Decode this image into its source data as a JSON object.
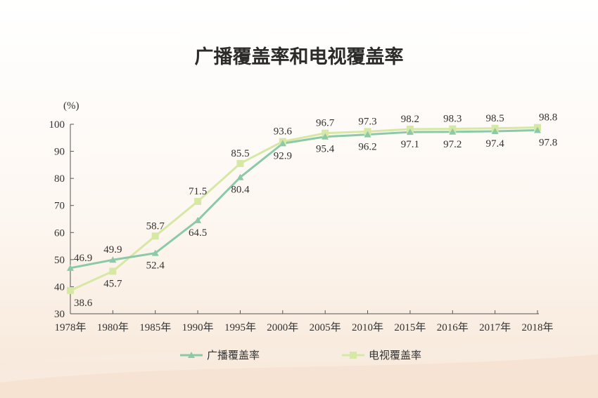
{
  "chart_data": {
    "type": "line",
    "title": "广播覆盖率和电视覆盖率",
    "ylabel": "(%)",
    "ylim": [
      30,
      100
    ],
    "yticks": [
      30,
      40,
      50,
      60,
      70,
      80,
      90,
      100
    ],
    "categories": [
      "1978年",
      "1980年",
      "1985年",
      "1990年",
      "1995年",
      "2000年",
      "2005年",
      "2010年",
      "2015年",
      "2016年",
      "2017年",
      "2018年"
    ],
    "series": [
      {
        "name": "广播覆盖率",
        "color": "#8cc9a8",
        "marker": "triangle",
        "values": [
          46.9,
          49.9,
          52.4,
          64.5,
          80.4,
          92.9,
          95.4,
          96.2,
          97.1,
          97.2,
          97.4,
          97.8
        ],
        "label_position": [
          "above",
          "above",
          "below",
          "below",
          "below",
          "below",
          "below",
          "below",
          "below",
          "below",
          "below",
          "below"
        ]
      },
      {
        "name": "电视覆盖率",
        "color": "#d6e8a4",
        "marker": "square",
        "values": [
          38.6,
          45.7,
          58.7,
          71.5,
          85.5,
          93.6,
          96.7,
          97.3,
          98.2,
          98.3,
          98.5,
          98.8
        ],
        "label_position": [
          "below",
          "below",
          "above",
          "above",
          "above",
          "above",
          "above",
          "above",
          "above",
          "above",
          "above",
          "above"
        ]
      }
    ],
    "grid": false,
    "legend": "bottom"
  }
}
